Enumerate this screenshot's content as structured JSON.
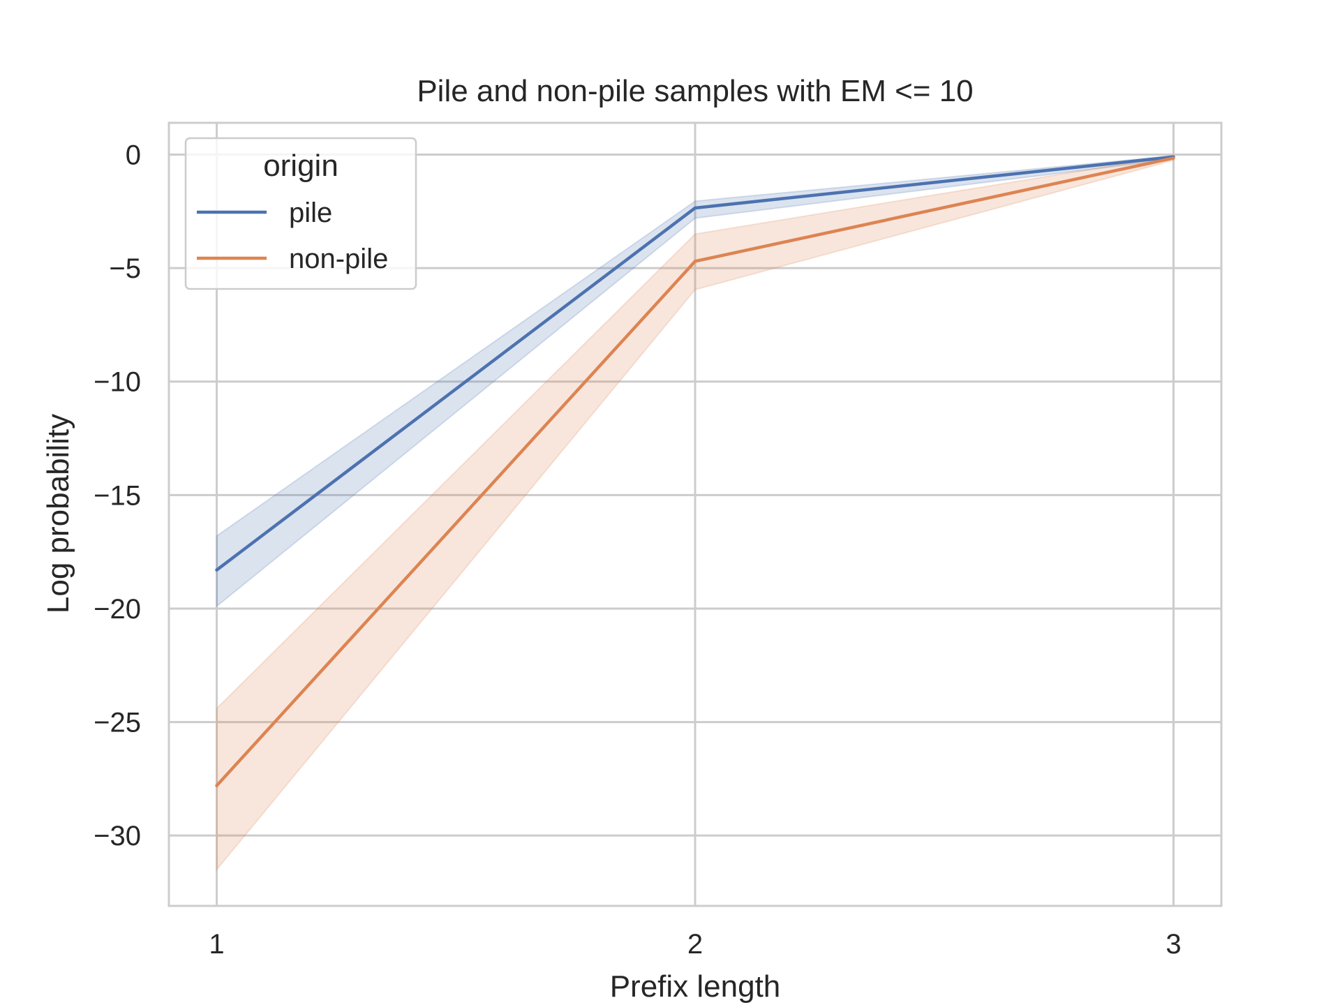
{
  "chart_data": {
    "type": "line",
    "title": "Pile and non-pile samples with EM <= 10",
    "xlabel": "Prefix length",
    "ylabel": "Log probability",
    "x": [
      1,
      2,
      3
    ],
    "xticks": [
      1,
      2,
      3
    ],
    "xtick_labels": [
      "1",
      "2",
      "3"
    ],
    "yticks": [
      0,
      -5,
      -10,
      -15,
      -20,
      -25,
      -30
    ],
    "ytick_labels": [
      "0",
      "−5",
      "−10",
      "−15",
      "−20",
      "−25",
      "−30"
    ],
    "xlim": [
      0.9,
      3.1
    ],
    "ylim": [
      -33.1,
      1.4
    ],
    "grid": true,
    "legend": {
      "title": "origin",
      "placement": "top-left"
    },
    "series": [
      {
        "name": "pile",
        "color": "#4c72b0",
        "values": [
          -18.3,
          -2.35,
          -0.1
        ],
        "ci_lower": [
          -19.9,
          -2.8,
          -0.2
        ],
        "ci_upper": [
          -16.8,
          -2.05,
          -0.05
        ]
      },
      {
        "name": "non-pile",
        "color": "#dd8452",
        "values": [
          -27.8,
          -4.7,
          -0.15
        ],
        "ci_lower": [
          -31.5,
          -5.95,
          -0.25
        ],
        "ci_upper": [
          -24.4,
          -3.5,
          -0.05
        ]
      }
    ]
  }
}
